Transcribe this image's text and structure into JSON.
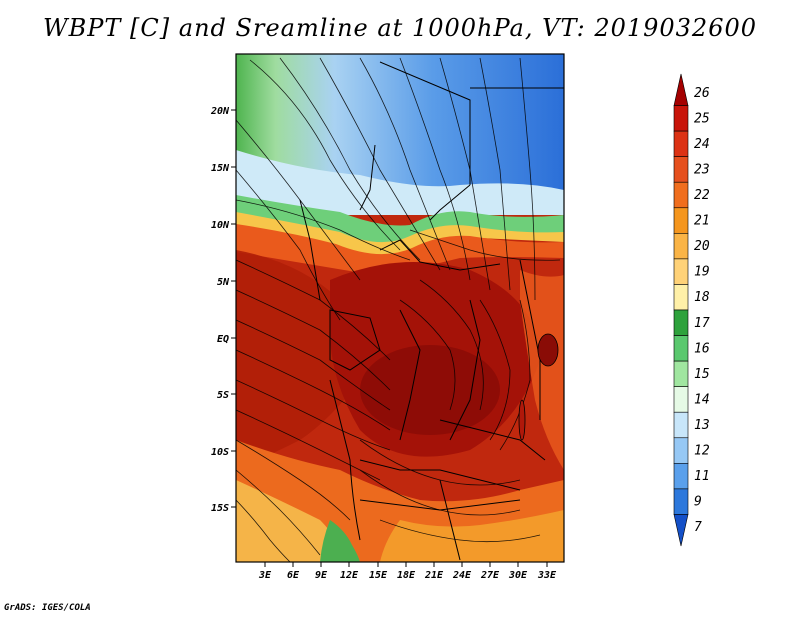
{
  "title": "WBPT [C] and Sreamline at 1000hPa, VT: 2019032600",
  "credit": "GrADS: IGES/COLA",
  "latitude_labels": [
    "20N",
    "15N",
    "10N",
    "5N",
    "EQ",
    "5S",
    "10S",
    "15S"
  ],
  "longitude_labels": [
    "3E",
    "6E",
    "9E",
    "12E",
    "15E",
    "18E",
    "21E",
    "24E",
    "27E",
    "30E",
    "33E"
  ],
  "colorbar": {
    "labels": [
      "26",
      "25",
      "24",
      "23",
      "22",
      "21",
      "20",
      "19",
      "18",
      "17",
      "16",
      "15",
      "14",
      "13",
      "12",
      "11",
      "9",
      "7"
    ],
    "colors": [
      "#a40000",
      "#c8140a",
      "#dc3214",
      "#e6501e",
      "#f06e1e",
      "#f5961e",
      "#fab446",
      "#ffd278",
      "#fff0a8",
      "#2ea23c",
      "#5ac86e",
      "#a0e6a0",
      "#e6fae6",
      "#c8e6fa",
      "#96c8f5",
      "#5aa0ec",
      "#2d78dc",
      "#1450c8"
    ]
  }
}
